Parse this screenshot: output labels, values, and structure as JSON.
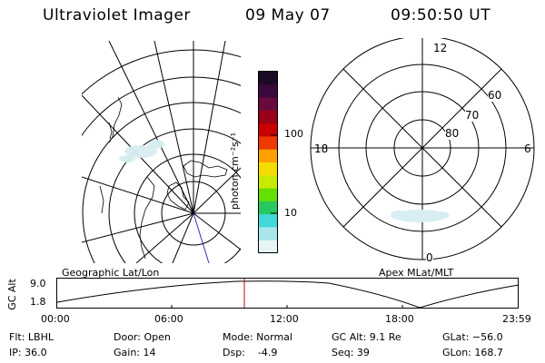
{
  "header": {
    "title": "Ultraviolet Imager",
    "date": "09 May 07",
    "time": "09:50:50 UT"
  },
  "colorbar": {
    "label": "photon cm⁻²s⁻¹",
    "ticks": [
      "100",
      "10"
    ],
    "colors": [
      "#1a0a24",
      "#3b0a3c",
      "#6a0a3c",
      "#9a0018",
      "#c80000",
      "#ee3a00",
      "#ffa000",
      "#f4dc00",
      "#c8ea00",
      "#64e000",
      "#28c860",
      "#40d8d8",
      "#a8e6ea",
      "#e6f4f6"
    ]
  },
  "polar_plot": {
    "clock_labels": {
      "top": "12",
      "left": "18",
      "right": "6",
      "bottom": "0"
    },
    "lat_labels": [
      "60",
      "70",
      "80"
    ]
  },
  "timeline": {
    "left_title": "Geographic Lat/Lon",
    "right_title": "Apex MLat/MLT",
    "axis_label": "GC Alt",
    "y_ticks": [
      "9.0",
      "1.8"
    ],
    "x_ticks": [
      "00:00",
      "06:00",
      "12:00",
      "18:00",
      "23:59"
    ],
    "current_time_marker_color": "#cc0000"
  },
  "info": {
    "flt": "Flt: LBHL",
    "ip": "IP: 36.0",
    "door": "Door: Open",
    "gain": "Gain: 14",
    "mode": "Mode: Normal",
    "dsp": "Dsp:    -4.9",
    "gc_alt": "GC Alt: 9.1 Re",
    "seq": "Seq: 39",
    "glat": "GLat: −56.0",
    "glon": "GLon: 168.7"
  }
}
